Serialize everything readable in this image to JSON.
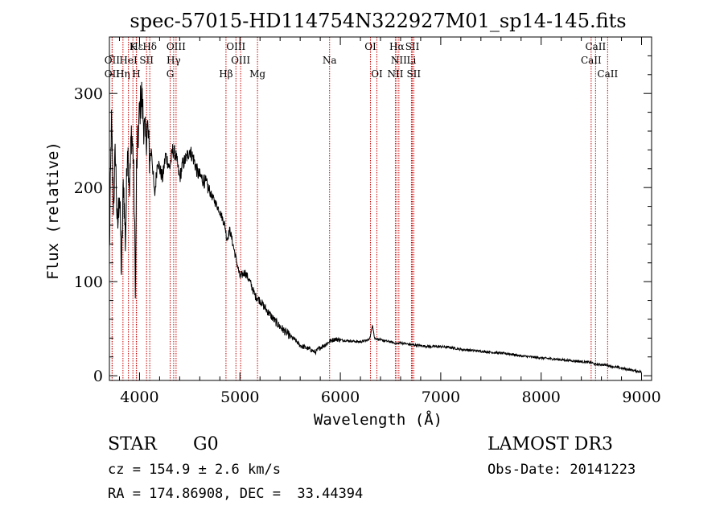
{
  "chart_data": {
    "type": "line",
    "title": "spec-57015-HD114754N322927M01_sp14-145.fits",
    "xlabel": "Wavelength (Å)",
    "ylabel": "Flux (relative)",
    "xlim": [
      3700,
      9100
    ],
    "ylim": [
      -5,
      360
    ],
    "x_ticks": [
      4000,
      5000,
      6000,
      7000,
      8000,
      9000
    ],
    "y_ticks": [
      0,
      100,
      200,
      300
    ],
    "grid": false,
    "series": [
      {
        "name": "flux",
        "x": [
          3700,
          3720,
          3740,
          3760,
          3780,
          3800,
          3820,
          3840,
          3860,
          3880,
          3900,
          3920,
          3940,
          3960,
          3970,
          3980,
          4000,
          4020,
          4040,
          4060,
          4080,
          4100,
          4120,
          4150,
          4180,
          4200,
          4230,
          4260,
          4300,
          4330,
          4360,
          4400,
          4430,
          4460,
          4500,
          4540,
          4580,
          4620,
          4660,
          4700,
          4750,
          4800,
          4850,
          4870,
          4900,
          4950,
          5000,
          5050,
          5100,
          5150,
          5200,
          5250,
          5300,
          5350,
          5400,
          5450,
          5500,
          5550,
          5600,
          5650,
          5700,
          5750,
          5800,
          5850,
          5900,
          5950,
          6000,
          6100,
          6200,
          6280,
          6300,
          6320,
          6340,
          6400,
          6500,
          6560,
          6600,
          6700,
          6800,
          6900,
          7000,
          7100,
          7200,
          7300,
          7400,
          7500,
          7600,
          7700,
          7800,
          7900,
          8000,
          8100,
          8200,
          8300,
          8400,
          8500,
          8542,
          8600,
          8662,
          8700,
          8800,
          8900,
          8950,
          9000
        ],
        "y": [
          130,
          270,
          180,
          240,
          150,
          200,
          110,
          210,
          140,
          250,
          200,
          260,
          230,
          90,
          215,
          240,
          280,
          300,
          270,
          250,
          265,
          230,
          240,
          190,
          230,
          220,
          210,
          235,
          220,
          240,
          235,
          210,
          225,
          230,
          240,
          230,
          215,
          210,
          205,
          195,
          185,
          175,
          160,
          145,
          155,
          130,
          105,
          110,
          100,
          85,
          80,
          72,
          65,
          58,
          52,
          47,
          42,
          38,
          32,
          30,
          28,
          25,
          30,
          33,
          37,
          39,
          38,
          37,
          36,
          38,
          42,
          55,
          40,
          38,
          36,
          34,
          35,
          33,
          32,
          31,
          31,
          30,
          28,
          27,
          26,
          25,
          24,
          23,
          21,
          20,
          19,
          18,
          17,
          16,
          15,
          14,
          12,
          12,
          11,
          10,
          8,
          6,
          5,
          4
        ]
      }
    ],
    "line_markers": [
      {
        "label": "Hδ",
        "x": 4102,
        "row": 1
      },
      {
        "label": "K",
        "x": 3934,
        "row": 1
      },
      {
        "label": "Hε",
        "x": 3970,
        "row": 1
      },
      {
        "label": "OIII",
        "x": 4364,
        "row": 1
      },
      {
        "label": "OIII",
        "x": 4960,
        "row": 1
      },
      {
        "label": "OI",
        "x": 6300,
        "row": 1
      },
      {
        "label": "Hα",
        "x": 6563,
        "row": 1
      },
      {
        "label": "SII",
        "x": 6717,
        "row": 1
      },
      {
        "label": "CaII",
        "x": 8542,
        "row": 1
      },
      {
        "label": "OII",
        "x": 3727,
        "row": 2
      },
      {
        "label": "HeI",
        "x": 3889,
        "row": 2
      },
      {
        "label": "SII",
        "x": 4070,
        "row": 2
      },
      {
        "label": "Hγ",
        "x": 4340,
        "row": 2
      },
      {
        "label": "OIII",
        "x": 5007,
        "row": 2
      },
      {
        "label": "Na",
        "x": 5893,
        "row": 2
      },
      {
        "label": "NII",
        "x": 6583,
        "row": 2
      },
      {
        "label": "Li",
        "x": 6708,
        "row": 2
      },
      {
        "label": "CaII",
        "x": 8498,
        "row": 2
      },
      {
        "label": "OII",
        "x": 3727,
        "row": 3
      },
      {
        "label": "Hη",
        "x": 3835,
        "row": 3
      },
      {
        "label": "H",
        "x": 3968,
        "row": 3
      },
      {
        "label": "G",
        "x": 4305,
        "row": 3
      },
      {
        "label": "Hβ",
        "x": 4861,
        "row": 3
      },
      {
        "label": "Mg",
        "x": 5175,
        "row": 3
      },
      {
        "label": "OI",
        "x": 6364,
        "row": 3
      },
      {
        "label": "NII",
        "x": 6548,
        "row": 3
      },
      {
        "label": "SII",
        "x": 6731,
        "row": 3
      },
      {
        "label": "CaII",
        "x": 8662,
        "row": 3
      }
    ],
    "annotations": {
      "object_class": "STAR",
      "subclass": "G0",
      "survey": "LAMOST DR3",
      "redshift": "cz = 154.9 ± 2.6 km/s",
      "obs_date": "Obs-Date: 20141223",
      "coords": "RA = 174.86908, DEC =  33.44394"
    },
    "colors": {
      "spectrum": "#000000",
      "marker_line": "#cc0000",
      "axes": "#000000"
    }
  }
}
